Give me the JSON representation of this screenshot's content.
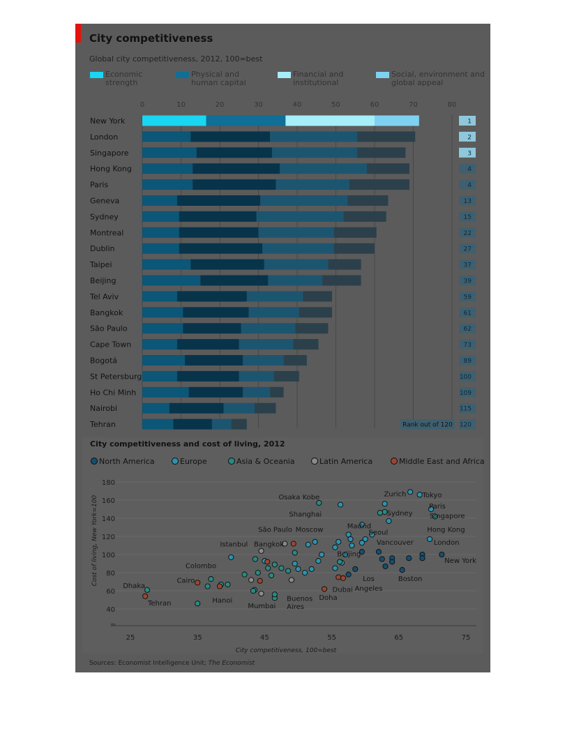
{
  "title": "City competitiveness",
  "subtitle": "Global city competitiveness, 2012, 100=best",
  "sources_prefix": "Sources: Economist Intelligence Unit; ",
  "sources_italic": "The Economist",
  "colors": {
    "economic": "#19d6f2",
    "physical": "#0f6f96",
    "financial": "#a6eefa",
    "social": "#7fd1f2",
    "north_america": "#164f6e",
    "europe": "#2c93ad",
    "asia_oceania": "#2a8a82",
    "latin_america": "#8a8a8a",
    "middle_east_africa": "#9a4633"
  },
  "chart_data": [
    {
      "type": "bar",
      "orientation": "horizontal",
      "stacked": true,
      "title": "City competitiveness",
      "subtitle": "Global city competitiveness, 2012, 100=best",
      "xlim": [
        0,
        80
      ],
      "x_ticks": [
        "0",
        "10",
        "20",
        "30",
        "40",
        "50",
        "60",
        "70",
        "80"
      ],
      "legend_position": "top",
      "rank_header": "Rank out of 120",
      "categories": [
        "New York",
        "London",
        "Singapore",
        "Hong Kong",
        "Paris",
        "Geneva",
        "Sydney",
        "Montreal",
        "Dublin",
        "Taipei",
        "Beijing",
        "Tel Aviv",
        "Bangkok",
        "São Paulo",
        "Cape Town",
        "Bogotá",
        "St Petersburg",
        "Ho Chi Minh",
        "Nairobi",
        "Tehran"
      ],
      "ranks": [
        "1",
        "2",
        "3",
        "4",
        "4",
        "13",
        "15",
        "22",
        "27",
        "37",
        "39",
        "59",
        "61",
        "62",
        "73",
        "89",
        "100",
        "109",
        "115",
        "120"
      ],
      "series": [
        {
          "name": "Economic strength",
          "legend": "Economic\nstrength",
          "values": [
            16.5,
            12.5,
            14,
            13,
            13,
            9,
            9.5,
            9.5,
            9.5,
            12.5,
            15,
            9,
            10.5,
            10.5,
            9,
            11,
            9,
            12,
            7,
            8
          ]
        },
        {
          "name": "Physical and human capital",
          "legend": "Physical and\nhuman capital",
          "values": [
            20.5,
            20.5,
            19.5,
            22.5,
            21.5,
            21.5,
            20,
            20.5,
            21.5,
            19,
            17.5,
            18,
            17,
            15,
            16,
            15,
            16,
            14,
            14,
            10
          ]
        },
        {
          "name": "Financial and institutional",
          "legend": "Financial and\ninstitutional",
          "values": [
            23,
            22.5,
            22,
            22.5,
            19,
            22.5,
            22.5,
            19.5,
            18.5,
            16.5,
            14,
            14.5,
            13,
            14,
            14,
            10.5,
            9,
            7,
            8,
            5
          ]
        },
        {
          "name": "Social, environment and global appeal",
          "legend": "Social, environment and\nglobal appeal",
          "values": [
            11.5,
            15,
            12.5,
            11,
            15.5,
            10.5,
            11,
            11,
            10.5,
            8.5,
            10,
            7.5,
            8.5,
            8.5,
            6.5,
            6,
            6.5,
            3.5,
            5.5,
            4
          ]
        }
      ]
    },
    {
      "type": "scatter",
      "title": "City competitiveness and cost of living, 2012",
      "xlabel": "City competitiveness, 100=best",
      "ylabel": "Cost of living, New York=100",
      "xlim": [
        25,
        75
      ],
      "ylim": [
        30,
        180
      ],
      "x_ticks": [
        25,
        35,
        45,
        55,
        65,
        75
      ],
      "y_ticks": [
        40,
        60,
        80,
        100,
        120,
        140,
        160,
        180
      ],
      "legend_position": "top",
      "series": [
        {
          "name": "North America",
          "key": "north_america",
          "points": [
            [
              71.4,
              100
            ],
            [
              68.5,
              100
            ],
            [
              68.5,
              96
            ],
            [
              64,
              96
            ],
            [
              62,
              103
            ],
            [
              62.5,
              95
            ],
            [
              59.5,
              103
            ],
            [
              58.5,
              84
            ],
            [
              57.5,
              78
            ],
            [
              63,
              87
            ],
            [
              65.5,
              83
            ],
            [
              66.5,
              96
            ],
            [
              64,
              92
            ]
          ]
        },
        {
          "name": "Europe",
          "key": "europe",
          "points": [
            [
              66.7,
              169
            ],
            [
              68.1,
              166
            ],
            [
              69.8,
              150
            ],
            [
              69.6,
              117
            ],
            [
              56.3,
              155
            ],
            [
              62.9,
              156
            ],
            [
              63.5,
              137
            ],
            [
              59.5,
              133
            ],
            [
              57.8,
              117
            ],
            [
              51.5,
              111
            ],
            [
              52.5,
              114
            ],
            [
              53.5,
              100
            ],
            [
              57,
              100
            ],
            [
              58,
              110
            ],
            [
              56,
              114
            ],
            [
              61,
              122
            ],
            [
              60,
              117
            ],
            [
              59.5,
              113
            ],
            [
              50,
              84
            ],
            [
              51,
              80
            ],
            [
              53,
              93
            ],
            [
              52,
              84
            ],
            [
              55.5,
              108
            ],
            [
              57.5,
              122
            ],
            [
              56.5,
              91
            ],
            [
              55.5,
              85
            ],
            [
              40,
              97
            ],
            [
              49.5,
              90
            ],
            [
              45,
              93
            ]
          ]
        },
        {
          "name": "Asia & Oceania",
          "key": "asia_oceania",
          "points": [
            [
              70.4,
              142
            ],
            [
              62.9,
              147
            ],
            [
              62.2,
              146
            ],
            [
              53.1,
              157
            ],
            [
              49.5,
              102
            ],
            [
              56.2,
              92
            ],
            [
              43.6,
              95
            ],
            [
              46.5,
              89
            ],
            [
              42,
              78
            ],
            [
              44,
              80
            ],
            [
              45.5,
              85
            ],
            [
              39.5,
              67
            ],
            [
              38.5,
              67
            ],
            [
              35,
              46
            ],
            [
              27.5,
              61
            ],
            [
              43.5,
              61
            ],
            [
              46.5,
              52
            ],
            [
              46.5,
              56
            ],
            [
              36.5,
              65
            ],
            [
              37,
              73
            ],
            [
              43.3,
              60
            ],
            [
              47.5,
              85
            ],
            [
              46,
              77
            ],
            [
              48.5,
              82
            ]
          ]
        },
        {
          "name": "Latin America",
          "key": "latin_america",
          "points": [
            [
              48,
              112
            ],
            [
              44.5,
              104
            ],
            [
              49,
              72
            ],
            [
              43,
              72
            ],
            [
              44.5,
              57
            ]
          ]
        },
        {
          "name": "Middle East and Africa",
          "key": "middle_east_africa",
          "points": [
            [
              27.2,
              54
            ],
            [
              35,
              69
            ],
            [
              49.3,
              112
            ],
            [
              45.4,
              92
            ],
            [
              44.3,
              71
            ],
            [
              38.3,
              65
            ],
            [
              56,
              75
            ],
            [
              56.7,
              74
            ],
            [
              53.9,
              62
            ]
          ]
        }
      ],
      "annotations": [
        {
          "text": "Zurich",
          "x": 66.1,
          "y": 169,
          "anchor": "end",
          "dy": 6
        },
        {
          "text": "Tokyo",
          "x": 68.5,
          "y": 166,
          "anchor": "start",
          "dy": 4
        },
        {
          "text": "Osaka Kobe",
          "x": 53.2,
          "y": 164,
          "anchor": "end",
          "dy": 4
        },
        {
          "text": "Paris",
          "x": 69.5,
          "y": 154,
          "anchor": "start",
          "dy": 4
        },
        {
          "text": "Singapore",
          "x": 69.6,
          "y": 143,
          "anchor": "start",
          "dy": 4
        },
        {
          "text": "Sydney",
          "x": 63.2,
          "y": 146,
          "anchor": "start",
          "dy": 4
        },
        {
          "text": "Shanghai",
          "x": 53.5,
          "y": 145,
          "anchor": "end",
          "dy": 4
        },
        {
          "text": "Madrid",
          "x": 57.3,
          "y": 132,
          "anchor": "start",
          "dy": 4
        },
        {
          "text": "São Paulo",
          "x": 49.1,
          "y": 128,
          "anchor": "end",
          "dy": 4
        },
        {
          "text": "Moscow",
          "x": 49.6,
          "y": 128,
          "anchor": "start",
          "dy": 4
        },
        {
          "text": "Seoul",
          "x": 60.5,
          "y": 125,
          "anchor": "start",
          "dy": 4
        },
        {
          "text": "Hong Kong",
          "x": 69.2,
          "y": 128,
          "anchor": "start",
          "dy": 4
        },
        {
          "text": "Vancouver",
          "x": 61.7,
          "y": 114,
          "anchor": "start",
          "dy": 4
        },
        {
          "text": "London",
          "x": 70.2,
          "y": 114,
          "anchor": "start",
          "dy": 4
        },
        {
          "text": "Istanbul",
          "x": 42.5,
          "y": 112,
          "anchor": "end",
          "dy": 4
        },
        {
          "text": "Bangkok",
          "x": 43.4,
          "y": 112,
          "anchor": "start",
          "dy": 4
        },
        {
          "text": "Beijing",
          "x": 55.8,
          "y": 101,
          "anchor": "start",
          "dy": 4
        },
        {
          "text": "New York",
          "x": 71.8,
          "y": 94,
          "anchor": "start",
          "dy": 4
        },
        {
          "text": "Colombo",
          "x": 35.5,
          "y": 88,
          "anchor": "middle",
          "dy": 4
        },
        {
          "text": "Cairo",
          "x": 34.6,
          "y": 72,
          "anchor": "end",
          "dy": 4
        },
        {
          "text": "Los",
          "x": 60.5,
          "y": 74,
          "anchor": "middle",
          "dy": 4
        },
        {
          "text": "Angeles",
          "x": 60.5,
          "y": 63,
          "anchor": "middle",
          "dy": 4
        },
        {
          "text": "Boston",
          "x": 64.9,
          "y": 74,
          "anchor": "start",
          "dy": 4
        },
        {
          "text": "Dhaka",
          "x": 27.2,
          "y": 66,
          "anchor": "end",
          "dy": 4
        },
        {
          "text": "Dubai",
          "x": 55.1,
          "y": 62,
          "anchor": "start",
          "dy": 4
        },
        {
          "text": "Doha",
          "x": 53.1,
          "y": 53,
          "anchor": "start",
          "dy": 4
        },
        {
          "text": "Hanoi",
          "x": 37.2,
          "y": 50,
          "anchor": "start",
          "dy": 4
        },
        {
          "text": "Buenos",
          "x": 48.3,
          "y": 52,
          "anchor": "start",
          "dy": 4
        },
        {
          "text": "Aires",
          "x": 48.3,
          "y": 43,
          "anchor": "start",
          "dy": 4
        },
        {
          "text": "Tehran",
          "x": 27.6,
          "y": 47,
          "anchor": "start",
          "dy": 4
        },
        {
          "text": "Mumbai",
          "x": 42.5,
          "y": 44,
          "anchor": "start",
          "dy": 4
        }
      ]
    }
  ]
}
